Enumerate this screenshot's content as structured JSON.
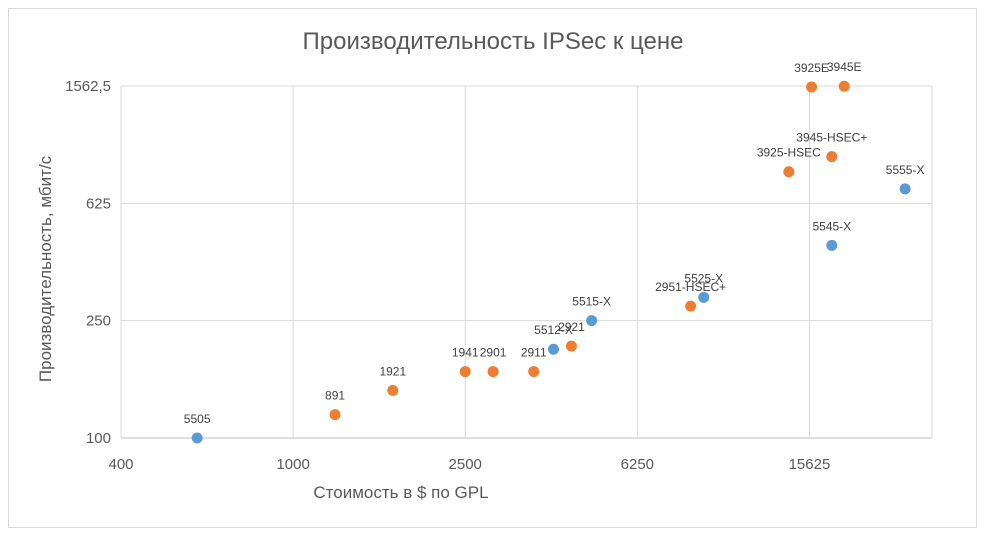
{
  "chart_data": {
    "type": "scatter",
    "title": "Производительность IPSec к цене",
    "xlabel": "Стоимость в $ по GPL",
    "ylabel": "Производительность, мбит/с",
    "x_scale": "log",
    "y_scale": "log",
    "xlim": [
      400,
      30000
    ],
    "ylim": [
      100,
      1562.5
    ],
    "x_ticks": [
      "400",
      "1000",
      "2500",
      "6250",
      "15625"
    ],
    "y_ticks": [
      "100",
      "250",
      "625",
      "1562,5"
    ],
    "grid": true,
    "legend": "none",
    "series": [
      {
        "color": "#5b9bd5",
        "points": [
          {
            "label": "5505",
            "x": 600,
            "y": 100
          },
          {
            "label": "5512-X",
            "x": 4000,
            "y": 200
          },
          {
            "label": "5515-X",
            "x": 4900,
            "y": 250
          },
          {
            "label": "5525-X",
            "x": 8900,
            "y": 300
          },
          {
            "label": "5545-X",
            "x": 17600,
            "y": 450
          },
          {
            "label": "5555-X",
            "x": 26000,
            "y": 700
          }
        ]
      },
      {
        "color": "#ed7d31",
        "points": [
          {
            "label": "891",
            "x": 1250,
            "y": 120
          },
          {
            "label": "1921",
            "x": 1700,
            "y": 145
          },
          {
            "label": "1941",
            "x": 2500,
            "y": 168
          },
          {
            "label": "2901",
            "x": 2900,
            "y": 168
          },
          {
            "label": "2911",
            "x": 3600,
            "y": 168
          },
          {
            "label": "2921",
            "x": 4400,
            "y": 205
          },
          {
            "label": "2951-HSEC+",
            "x": 8300,
            "y": 280
          },
          {
            "label": "3925-HSEC",
            "x": 14000,
            "y": 800
          },
          {
            "label": "3945-HSEC+",
            "x": 17600,
            "y": 900
          },
          {
            "label": "3925E",
            "x": 15800,
            "y": 1550
          },
          {
            "label": "3945E",
            "x": 18800,
            "y": 1560
          }
        ]
      }
    ]
  }
}
